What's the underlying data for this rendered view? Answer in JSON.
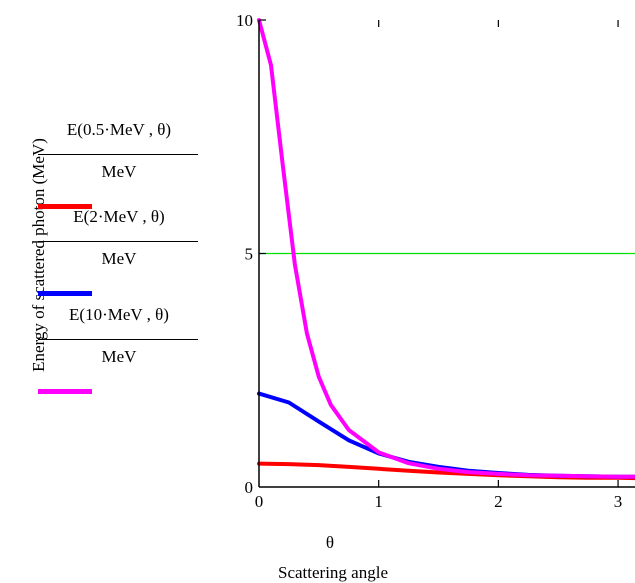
{
  "chart_data": {
    "type": "line",
    "ylabel": "Energy of scattered photon (MeV)",
    "xlabel_var": "θ",
    "xlabel": "Scattering angle",
    "xlim": [
      0,
      3.14159
    ],
    "ylim": [
      0,
      10
    ],
    "x_ticks": [
      {
        "value": 0,
        "label": "0"
      },
      {
        "value": 1,
        "label": "1"
      },
      {
        "value": 2,
        "label": "2"
      },
      {
        "value": 3,
        "label": "3"
      }
    ],
    "y_ticks": [
      {
        "value": 0,
        "label": "0"
      },
      {
        "value": 5,
        "label": "5"
      },
      {
        "value": 10,
        "label": "10"
      }
    ],
    "reference_line": {
      "y": 5,
      "color": "#00e000"
    },
    "grid": false,
    "series": [
      {
        "legend_num": "E(0.5·MeV , θ)",
        "legend_den": "MeV",
        "color": "#ff0000",
        "x": [
          0,
          0.25,
          0.5,
          0.75,
          1.0,
          1.25,
          1.5,
          1.75,
          2.0,
          2.25,
          2.5,
          2.75,
          3.0,
          3.14
        ],
        "y": [
          0.5,
          0.49,
          0.47,
          0.43,
          0.39,
          0.35,
          0.31,
          0.28,
          0.25,
          0.23,
          0.21,
          0.2,
          0.2,
          0.19
        ]
      },
      {
        "legend_num": "E(2·MeV , θ)",
        "legend_den": "MeV",
        "color": "#0000ff",
        "x": [
          0,
          0.25,
          0.5,
          0.75,
          1.0,
          1.25,
          1.5,
          1.75,
          2.0,
          2.25,
          2.5,
          2.75,
          3.0,
          3.14
        ],
        "y": [
          2.0,
          1.81,
          1.4,
          1.0,
          0.72,
          0.54,
          0.43,
          0.35,
          0.3,
          0.26,
          0.24,
          0.23,
          0.22,
          0.22
        ]
      },
      {
        "legend_num": "E(10·MeV , θ)",
        "legend_den": "MeV",
        "color": "#ff00ff",
        "x": [
          0,
          0.1,
          0.2,
          0.3,
          0.4,
          0.5,
          0.6,
          0.75,
          1.0,
          1.25,
          1.5,
          1.75,
          2.0,
          2.25,
          2.5,
          2.75,
          3.0,
          3.14
        ],
        "y": [
          10.0,
          9.03,
          6.87,
          4.76,
          3.29,
          2.36,
          1.76,
          1.22,
          0.74,
          0.51,
          0.39,
          0.32,
          0.28,
          0.25,
          0.24,
          0.23,
          0.22,
          0.22
        ]
      }
    ]
  }
}
